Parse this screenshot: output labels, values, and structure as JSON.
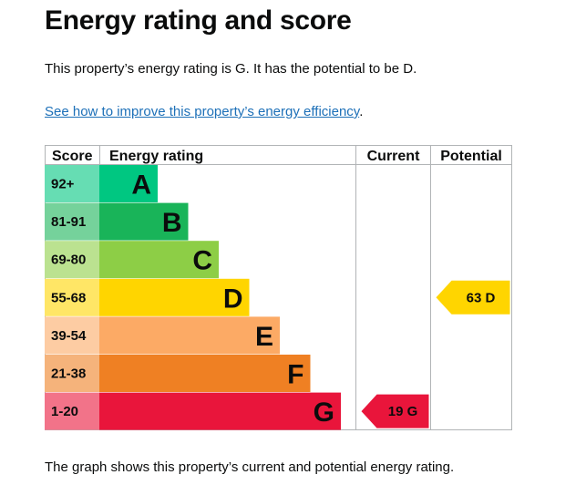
{
  "page": {
    "title": "Energy rating and score",
    "summary": "This property’s energy rating is G. It has the potential to be D.",
    "improve_link": "See how to improve this property’s energy efficiency",
    "improve_suffix": ".",
    "footer": "The graph shows this property’s current and potential energy rating."
  },
  "chart_data": {
    "type": "table",
    "headers": {
      "score": "Score",
      "rating": "Energy rating",
      "current": "Current",
      "potential": "Potential"
    },
    "bands": [
      {
        "score": "92+",
        "letter": "A",
        "color": "#00c781",
        "score_bg": "#66ddb3"
      },
      {
        "score": "81-91",
        "letter": "B",
        "color": "#19b459",
        "score_bg": "#75d29b"
      },
      {
        "score": "69-80",
        "letter": "C",
        "color": "#8dce46",
        "score_bg": "#bbe290"
      },
      {
        "score": "55-68",
        "letter": "D",
        "color": "#ffd500",
        "score_bg": "#ffe666"
      },
      {
        "score": "39-54",
        "letter": "E",
        "color": "#fcaa65",
        "score_bg": "#fdcca3"
      },
      {
        "score": "21-38",
        "letter": "F",
        "color": "#ef8023",
        "score_bg": "#f5b37b"
      },
      {
        "score": "1-20",
        "letter": "G",
        "color": "#e9153b",
        "score_bg": "#f27389"
      }
    ],
    "current": {
      "score": 19,
      "band": "G",
      "label": "19 G",
      "color": "#e9153b",
      "text_color": "#0b0c0c"
    },
    "potential": {
      "score": 63,
      "band": "D",
      "label": "63 D",
      "color": "#ffd500",
      "text_color": "#0b0c0c"
    }
  }
}
